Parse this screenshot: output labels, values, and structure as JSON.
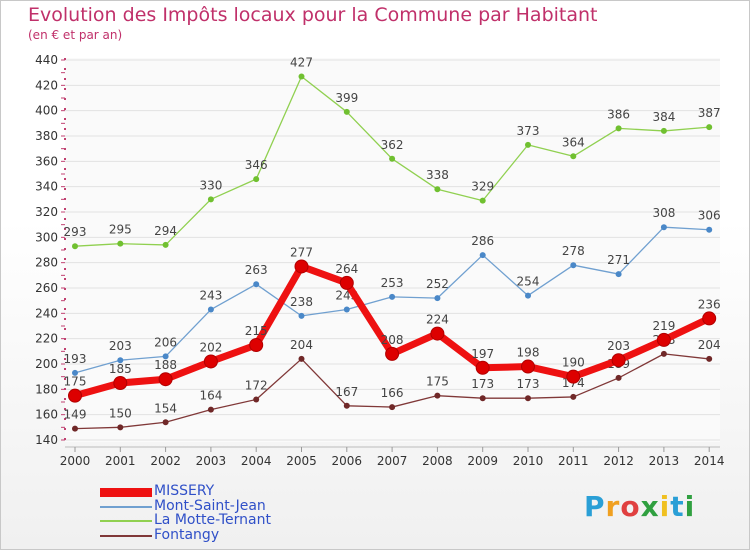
{
  "title": "Evolution des Impôts locaux pour la Commune par Habitant",
  "subtitle": "(en € et par an)",
  "logo": {
    "letters": [
      "P",
      "r",
      "o",
      "x",
      "i",
      "t",
      "i"
    ],
    "colors": [
      "#2a9fd6",
      "#f0a020",
      "#e04040",
      "#30a040",
      "#f0c020",
      "#2a9fd6",
      "#30a040"
    ]
  },
  "chart_data": {
    "type": "line",
    "x": [
      "2000",
      "2001",
      "2002",
      "2003",
      "2004",
      "2005",
      "2006",
      "2007",
      "2008",
      "2009",
      "2010",
      "2011",
      "2012",
      "2013",
      "2014"
    ],
    "ylim": [
      140,
      440
    ],
    "yticks": [
      140,
      160,
      180,
      200,
      220,
      240,
      260,
      280,
      300,
      320,
      340,
      360,
      380,
      400,
      420,
      440
    ],
    "grid": true,
    "legend_position": "bottom-left",
    "series": [
      {
        "name": "La Motte-Ternant",
        "color": "#90d050",
        "marker": "#70c030",
        "values": [
          293,
          295,
          294,
          330,
          346,
          427,
          399,
          362,
          338,
          329,
          373,
          364,
          386,
          384,
          387
        ]
      },
      {
        "name": "Mont-Saint-Jean",
        "color": "#70a0d0",
        "marker": "#4a88c8",
        "values": [
          193,
          203,
          206,
          243,
          263,
          238,
          243,
          253,
          252,
          286,
          254,
          278,
          271,
          308,
          306
        ]
      },
      {
        "name": "Fontangy",
        "color": "#803838",
        "marker": "#702828",
        "values": [
          149,
          150,
          154,
          164,
          172,
          204,
          167,
          166,
          175,
          173,
          173,
          174,
          189,
          208,
          204
        ]
      },
      {
        "name": "MISSERY",
        "color": "#ee1111",
        "marker": "#dd0000",
        "values": [
          175,
          185,
          188,
          202,
          215,
          277,
          264,
          208,
          224,
          197,
          198,
          190,
          203,
          219,
          236
        ]
      }
    ],
    "legend_order": [
      "MISSERY",
      "Mont-Saint-Jean",
      "La Motte-Ternant",
      "Fontangy"
    ]
  }
}
